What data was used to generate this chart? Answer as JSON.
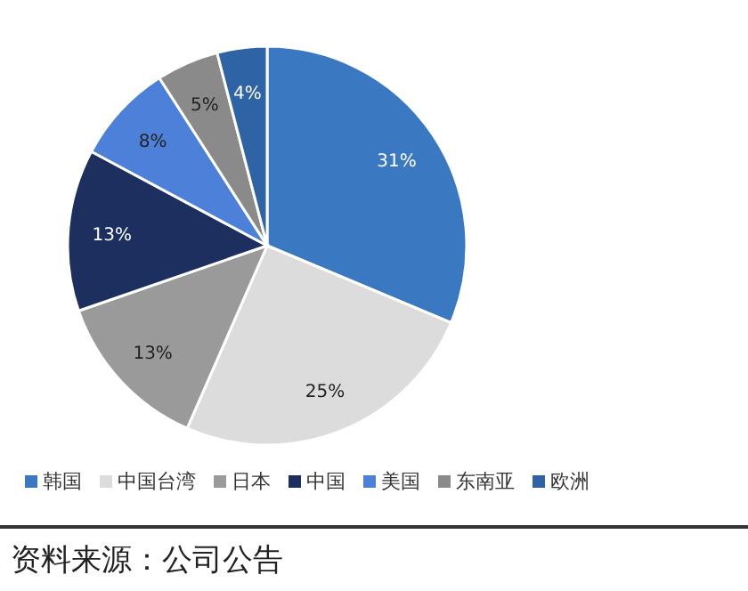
{
  "chart_data": {
    "type": "pie",
    "categories": [
      "韩国",
      "中国台湾",
      "日本",
      "中国",
      "美国",
      "东南亚",
      "欧洲"
    ],
    "values": [
      31,
      25,
      13,
      13,
      8,
      5,
      4
    ],
    "colors": [
      "#3a78c2",
      "#dcdcdc",
      "#9a9a9a",
      "#1c2f5e",
      "#4d80d8",
      "#8a8a8a",
      "#2e63a6"
    ],
    "value_labels": [
      "31%",
      "25%",
      "13%",
      "13%",
      "8%",
      "5%",
      "4%"
    ],
    "legend": "bottom",
    "annotations": [
      "资料来源：公司公告"
    ]
  }
}
